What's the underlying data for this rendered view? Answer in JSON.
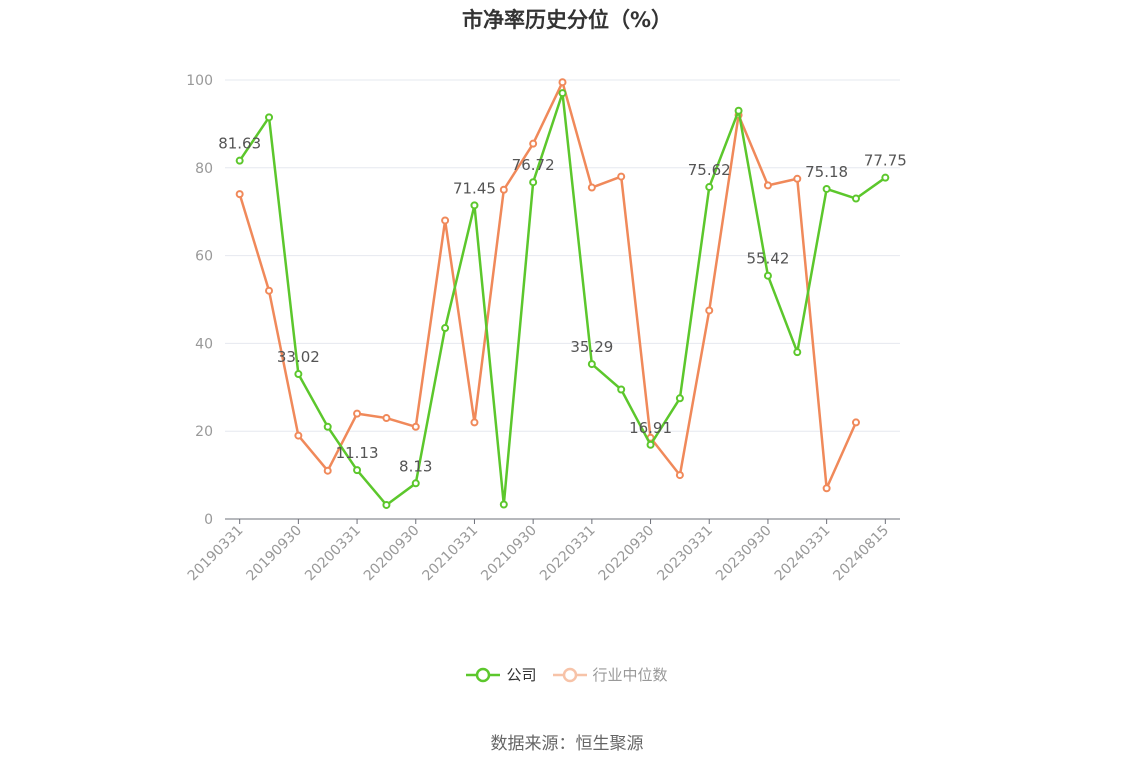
{
  "chart_data": {
    "type": "line",
    "title": "市净率历史分位（%）",
    "x_tick_labels": [
      "20190331",
      "20190930",
      "20200331",
      "20200930",
      "20210331",
      "20210930",
      "20220331",
      "20220930",
      "20230331",
      "20230930",
      "20240331",
      "20240815"
    ],
    "x": [
      "20190331",
      "20190630",
      "20190930",
      "20191231",
      "20200331",
      "20200630",
      "20200930",
      "20201231",
      "20210331",
      "20210630",
      "20210930",
      "20211231",
      "20220331",
      "20220630",
      "20220930",
      "20221231",
      "20230331",
      "20230630",
      "20230930",
      "20231231",
      "20240331",
      "20240630",
      "20240815"
    ],
    "ylim": [
      0,
      100
    ],
    "y_ticks": [
      0,
      20,
      40,
      60,
      80,
      100
    ],
    "grid": true,
    "legend_position": "bottom",
    "series": [
      {
        "name": "公司",
        "color": "#5cc72c",
        "values": [
          81.63,
          91.5,
          33.02,
          21,
          11.13,
          3.2,
          8.13,
          43.5,
          71.45,
          3.3,
          76.72,
          97,
          35.29,
          29.5,
          16.91,
          27.5,
          75.62,
          93,
          55.42,
          38,
          75.18,
          73,
          77.75
        ],
        "labeled": [
          81.63,
          null,
          33.02,
          null,
          11.13,
          null,
          8.13,
          null,
          71.45,
          null,
          76.72,
          null,
          35.29,
          null,
          16.91,
          null,
          75.62,
          null,
          55.42,
          null,
          75.18,
          null,
          77.75
        ]
      },
      {
        "name": "行业中位数",
        "color": "#f0895a",
        "values": [
          74,
          52,
          19,
          11,
          24,
          23,
          21,
          68,
          22,
          75,
          85.5,
          99.5,
          75.5,
          78,
          18.5,
          10,
          47.5,
          92,
          76,
          77.5,
          7,
          22,
          null
        ]
      }
    ]
  },
  "legend": {
    "items": [
      {
        "label": "公司",
        "color": "#5cc72c"
      },
      {
        "label": "行业中位数",
        "color": "#f0895a"
      }
    ]
  },
  "source": "数据来源：恒生聚源"
}
